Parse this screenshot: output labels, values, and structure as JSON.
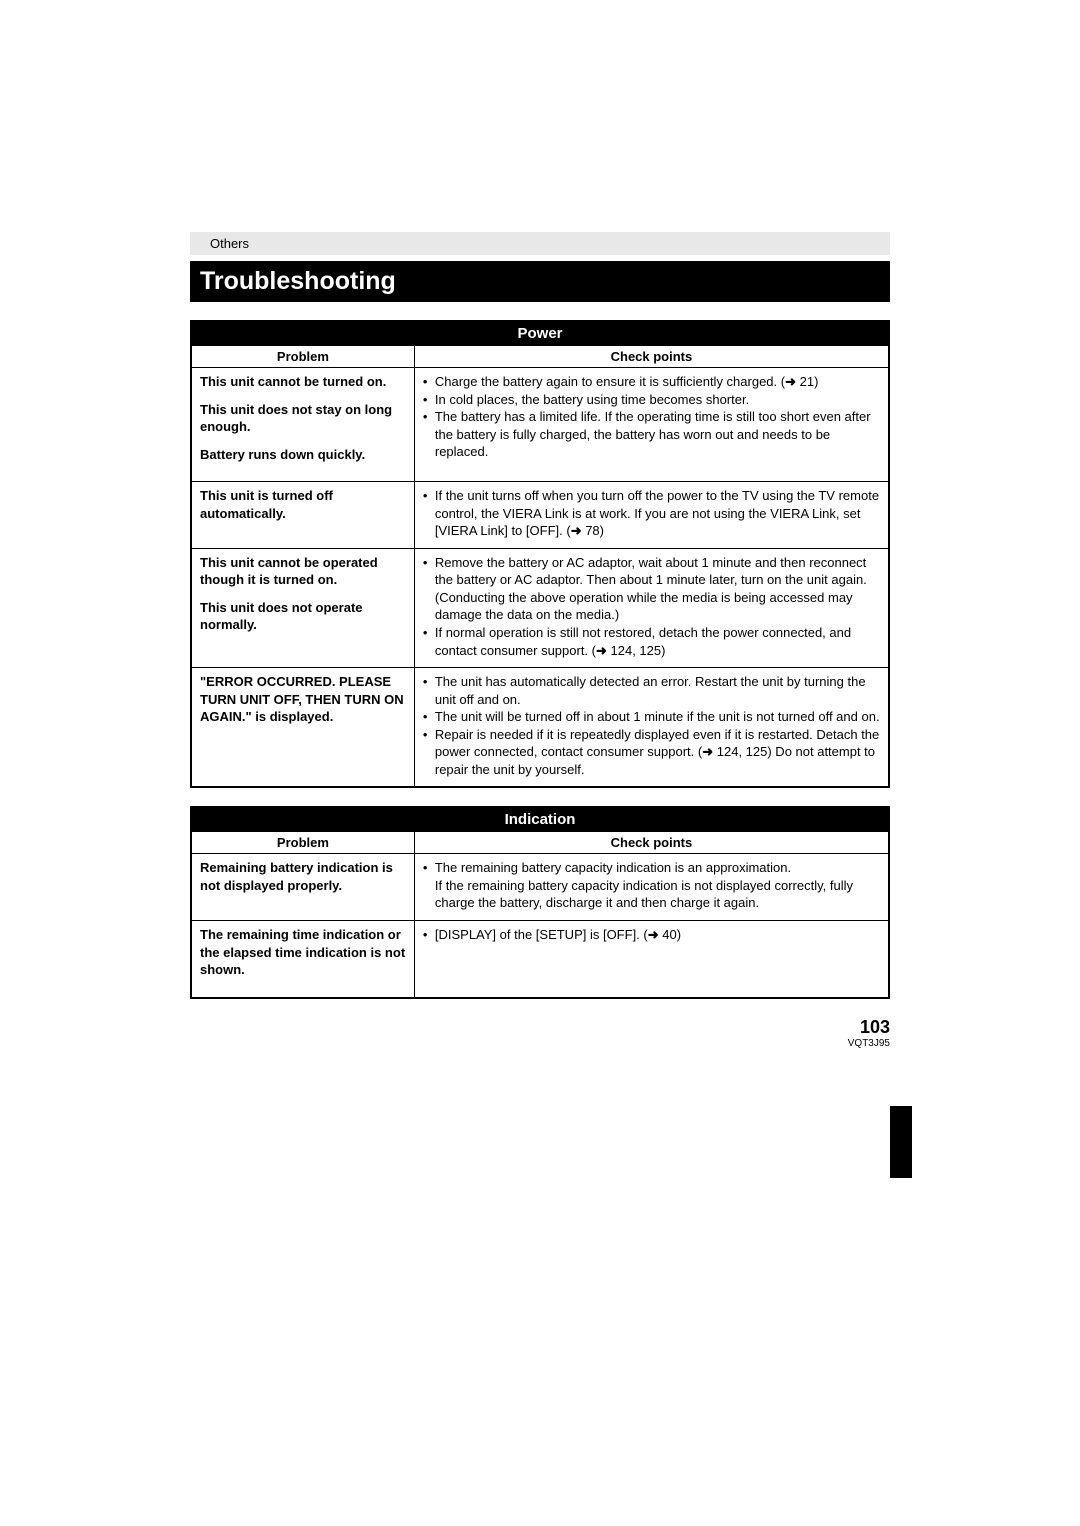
{
  "sectionLabel": "Others",
  "pageTitle": "Troubleshooting",
  "pageNumber": "103",
  "docCode": "VQT3J95",
  "columnHeaders": {
    "problem": "Problem",
    "check": "Check points"
  },
  "tables": {
    "power": {
      "title": "Power",
      "rows": [
        {
          "problems": [
            "This unit cannot be turned on.",
            "This unit does not stay on long enough.",
            "Battery runs down quickly."
          ],
          "checks": [
            {
              "pre": "Charge the battery again to ensure it is sufficiently charged. (",
              "ref": "21",
              "post": ")"
            },
            {
              "pre": "In cold places, the battery using time becomes shorter.",
              "ref": "",
              "post": ""
            },
            {
              "pre": "The battery has a limited life. If the operating time is still too short even after the battery is fully charged, the battery has worn out and needs to be replaced.",
              "ref": "",
              "post": ""
            }
          ]
        },
        {
          "problems": [
            "This unit is turned off automatically."
          ],
          "checks": [
            {
              "pre": "If the unit turns off when you turn off the power to the TV using the TV remote control, the VIERA Link is at work. If you are not using the VIERA Link, set [VIERA Link] to [OFF]. (",
              "ref": "78",
              "post": ")"
            }
          ]
        },
        {
          "problems": [
            "This unit cannot be operated though it is turned on.",
            "This unit does not operate normally."
          ],
          "checks": [
            {
              "pre": "Remove the battery or AC adaptor, wait about 1 minute and then reconnect the battery or AC adaptor. Then about 1 minute later, turn on the unit again. (Conducting the above operation while the media is being accessed may damage the data on the media.)",
              "ref": "",
              "post": ""
            },
            {
              "pre": "If normal operation is still not restored, detach the power connected, and contact consumer support. (",
              "ref": "124, 125",
              "post": ")"
            }
          ]
        },
        {
          "problems": [
            "\"ERROR OCCURRED. PLEASE TURN UNIT OFF, THEN TURN ON AGAIN.\" is displayed."
          ],
          "checks": [
            {
              "pre": "The unit has automatically detected an error. Restart the unit by turning the unit off and on.",
              "ref": "",
              "post": ""
            },
            {
              "pre": "The unit will be turned off in about 1 minute if the unit is not turned off and on.",
              "ref": "",
              "post": ""
            },
            {
              "pre": "Repair is needed if it is repeatedly displayed even if it is restarted. Detach the power connected, contact consumer support. (",
              "ref": "124, 125",
              "post": ") Do not attempt to repair the unit by yourself."
            }
          ]
        }
      ]
    },
    "indication": {
      "title": "Indication",
      "rows": [
        {
          "problems": [
            "Remaining battery indication is not displayed properly."
          ],
          "checks": [
            {
              "pre": "The remaining battery capacity indication is an approximation.\nIf the remaining battery capacity indication is not displayed correctly, fully charge the battery, discharge it and then charge it again.",
              "ref": "",
              "post": ""
            }
          ]
        },
        {
          "problems": [
            "The remaining time indication or the elapsed time indication is not shown."
          ],
          "checks": [
            {
              "pre": "[DISPLAY] of the [SETUP] is [OFF]. (",
              "ref": "40",
              "post": ")"
            }
          ]
        }
      ]
    }
  }
}
